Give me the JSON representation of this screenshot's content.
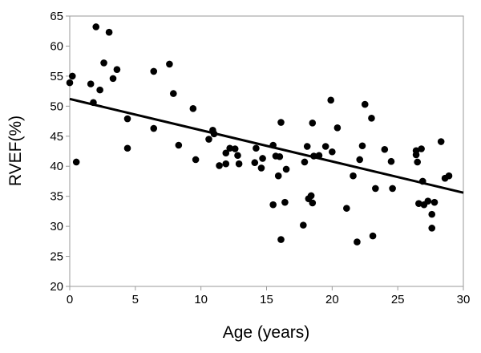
{
  "chart_data": {
    "type": "scatter",
    "title": "",
    "xlabel": "Age (years)",
    "ylabel": "RVEF(%)",
    "xlim": [
      0,
      30
    ],
    "ylim": [
      20,
      65
    ],
    "xticks": [
      0,
      5,
      10,
      15,
      20,
      25,
      30
    ],
    "yticks": [
      20,
      25,
      30,
      35,
      40,
      45,
      50,
      55,
      60,
      65
    ],
    "grid": false,
    "legend": "none",
    "marker_color": "#000000",
    "trendline": {
      "x": [
        0,
        30
      ],
      "y": [
        51.2,
        35.6
      ]
    },
    "points": [
      {
        "x": 0.0,
        "y": 53.9
      },
      {
        "x": 0.2,
        "y": 55.0
      },
      {
        "x": 0.5,
        "y": 40.7
      },
      {
        "x": 1.6,
        "y": 53.7
      },
      {
        "x": 1.8,
        "y": 50.6
      },
      {
        "x": 2.0,
        "y": 63.2
      },
      {
        "x": 2.3,
        "y": 52.7
      },
      {
        "x": 2.6,
        "y": 57.2
      },
      {
        "x": 3.0,
        "y": 62.3
      },
      {
        "x": 3.3,
        "y": 54.6
      },
      {
        "x": 3.6,
        "y": 56.1
      },
      {
        "x": 4.4,
        "y": 47.9
      },
      {
        "x": 4.4,
        "y": 43.0
      },
      {
        "x": 6.4,
        "y": 46.3
      },
      {
        "x": 6.4,
        "y": 55.8
      },
      {
        "x": 7.6,
        "y": 57.0
      },
      {
        "x": 7.9,
        "y": 52.1
      },
      {
        "x": 8.3,
        "y": 43.5
      },
      {
        "x": 9.4,
        "y": 49.6
      },
      {
        "x": 9.6,
        "y": 41.1
      },
      {
        "x": 10.6,
        "y": 44.5
      },
      {
        "x": 10.9,
        "y": 46.0
      },
      {
        "x": 11.0,
        "y": 45.4
      },
      {
        "x": 11.4,
        "y": 40.1
      },
      {
        "x": 11.9,
        "y": 42.2
      },
      {
        "x": 11.9,
        "y": 40.4
      },
      {
        "x": 12.2,
        "y": 43.0
      },
      {
        "x": 12.6,
        "y": 42.9
      },
      {
        "x": 12.8,
        "y": 41.8
      },
      {
        "x": 12.9,
        "y": 40.4
      },
      {
        "x": 14.1,
        "y": 40.6
      },
      {
        "x": 14.2,
        "y": 43.0
      },
      {
        "x": 14.6,
        "y": 39.7
      },
      {
        "x": 14.7,
        "y": 41.3
      },
      {
        "x": 15.5,
        "y": 43.5
      },
      {
        "x": 15.5,
        "y": 33.6
      },
      {
        "x": 15.7,
        "y": 41.7
      },
      {
        "x": 15.9,
        "y": 38.4
      },
      {
        "x": 16.0,
        "y": 41.6
      },
      {
        "x": 16.1,
        "y": 47.3
      },
      {
        "x": 16.1,
        "y": 27.8
      },
      {
        "x": 16.4,
        "y": 34.0
      },
      {
        "x": 16.5,
        "y": 39.5
      },
      {
        "x": 17.8,
        "y": 30.2
      },
      {
        "x": 17.9,
        "y": 40.7
      },
      {
        "x": 18.1,
        "y": 43.3
      },
      {
        "x": 18.2,
        "y": 34.6
      },
      {
        "x": 18.4,
        "y": 35.1
      },
      {
        "x": 18.5,
        "y": 33.9
      },
      {
        "x": 18.5,
        "y": 47.2
      },
      {
        "x": 18.6,
        "y": 41.7
      },
      {
        "x": 19.0,
        "y": 41.8
      },
      {
        "x": 19.5,
        "y": 43.3
      },
      {
        "x": 19.9,
        "y": 51.0
      },
      {
        "x": 20.0,
        "y": 42.4
      },
      {
        "x": 20.4,
        "y": 46.4
      },
      {
        "x": 21.1,
        "y": 33.0
      },
      {
        "x": 21.6,
        "y": 38.4
      },
      {
        "x": 21.9,
        "y": 27.4
      },
      {
        "x": 22.1,
        "y": 41.1
      },
      {
        "x": 22.3,
        "y": 43.4
      },
      {
        "x": 22.5,
        "y": 50.3
      },
      {
        "x": 23.0,
        "y": 48.0
      },
      {
        "x": 23.1,
        "y": 28.4
      },
      {
        "x": 23.3,
        "y": 36.3
      },
      {
        "x": 24.0,
        "y": 42.8
      },
      {
        "x": 24.5,
        "y": 40.8
      },
      {
        "x": 24.6,
        "y": 36.3
      },
      {
        "x": 26.4,
        "y": 42.6
      },
      {
        "x": 26.4,
        "y": 41.9
      },
      {
        "x": 26.5,
        "y": 40.7
      },
      {
        "x": 26.6,
        "y": 33.8
      },
      {
        "x": 26.8,
        "y": 42.9
      },
      {
        "x": 26.9,
        "y": 37.5
      },
      {
        "x": 27.0,
        "y": 33.6
      },
      {
        "x": 27.3,
        "y": 34.2
      },
      {
        "x": 27.6,
        "y": 32.0
      },
      {
        "x": 27.6,
        "y": 29.7
      },
      {
        "x": 27.8,
        "y": 34.0
      },
      {
        "x": 28.3,
        "y": 44.1
      },
      {
        "x": 28.6,
        "y": 38.0
      },
      {
        "x": 28.9,
        "y": 38.4
      }
    ]
  }
}
